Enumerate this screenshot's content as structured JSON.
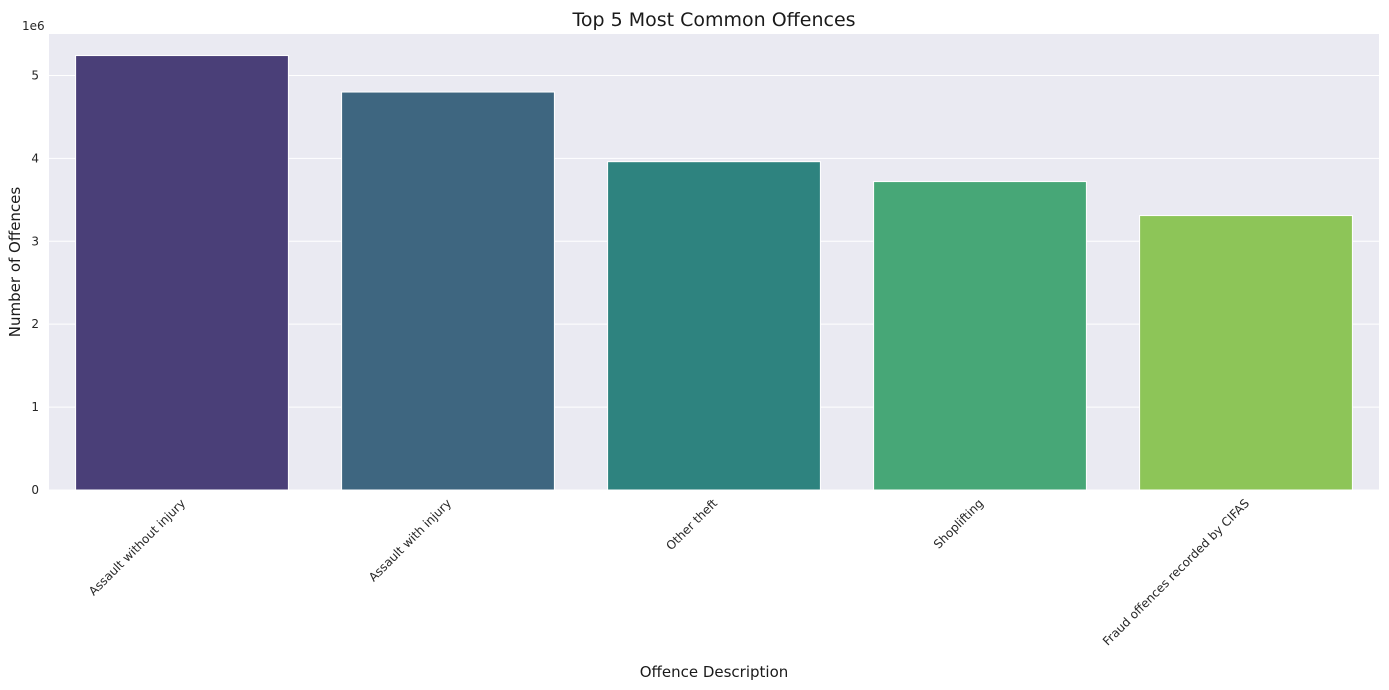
{
  "chart_data": {
    "type": "bar",
    "title": "Top 5 Most Common Offences",
    "xlabel": "Offence Description",
    "ylabel": "Number of Offences",
    "y_offset_label": "1e6",
    "categories": [
      "Assault without injury",
      "Assault with injury",
      "Other theft",
      "Shoplifting",
      "Fraud offences recorded by CIFAS"
    ],
    "values": [
      5240000,
      4800000,
      3960000,
      3720000,
      3310000
    ],
    "colors": [
      "#4a3f78",
      "#3e6680",
      "#2e837f",
      "#47a777",
      "#8dc558"
    ],
    "ylim": [
      0,
      5500000
    ],
    "yticks": [
      0,
      1,
      2,
      3,
      4,
      5
    ],
    "ytick_scale": 1000000,
    "grid": true,
    "grid_axis": "y",
    "background": "#eaeaf2",
    "xtick_rotation": 45
  }
}
